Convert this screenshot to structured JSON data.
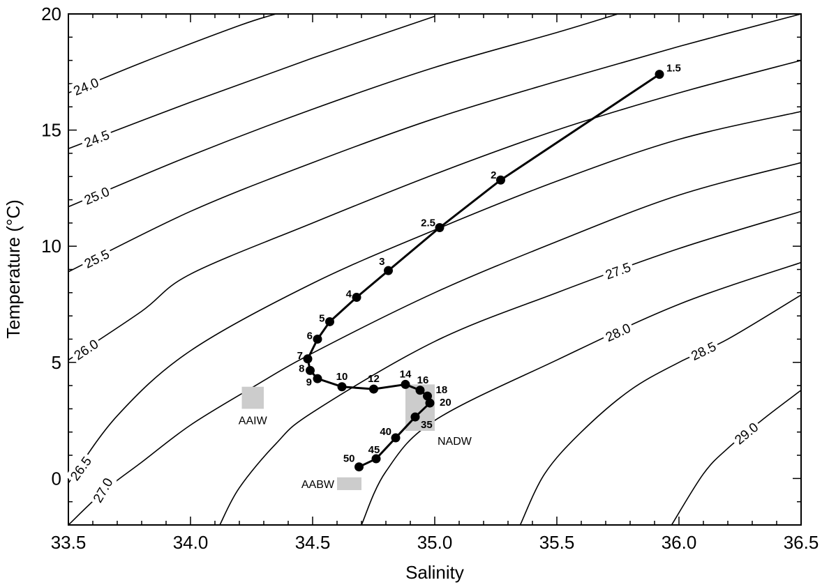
{
  "chart_data": {
    "type": "line",
    "title": "",
    "xlabel": "Salinity",
    "ylabel": "Temperature (°C)",
    "xlim": [
      33.5,
      36.5
    ],
    "ylim": [
      -2,
      20
    ],
    "xticks": [
      "33.5",
      "34.0",
      "34.5",
      "35.0",
      "35.5",
      "36.0",
      "36.5"
    ],
    "yticks": [
      "0",
      "5",
      "10",
      "15",
      "20"
    ],
    "grid": false,
    "series": [
      {
        "points": [
          {
            "x": 35.92,
            "y": 17.4,
            "label": "1.5"
          },
          {
            "x": 35.27,
            "y": 12.85,
            "label": "2"
          },
          {
            "x": 35.02,
            "y": 10.8,
            "label": "2.5"
          },
          {
            "x": 34.81,
            "y": 8.95,
            "label": "3"
          },
          {
            "x": 34.68,
            "y": 7.8,
            "label": "4"
          },
          {
            "x": 34.57,
            "y": 6.75,
            "label": "5"
          },
          {
            "x": 34.52,
            "y": 6.0,
            "label": "6"
          },
          {
            "x": 34.48,
            "y": 5.15,
            "label": "7"
          },
          {
            "x": 34.49,
            "y": 4.65,
            "label": "8"
          },
          {
            "x": 34.52,
            "y": 4.3,
            "label": "9"
          },
          {
            "x": 34.62,
            "y": 3.95,
            "label": "10"
          },
          {
            "x": 34.75,
            "y": 3.85,
            "label": "12"
          },
          {
            "x": 34.88,
            "y": 4.05,
            "label": "14"
          },
          {
            "x": 34.94,
            "y": 3.8,
            "label": "16"
          },
          {
            "x": 34.97,
            "y": 3.55,
            "label": "18"
          },
          {
            "x": 34.98,
            "y": 3.25,
            "label": "20"
          },
          {
            "x": 34.92,
            "y": 2.65,
            "label": "35"
          },
          {
            "x": 34.84,
            "y": 1.75,
            "label": "40"
          },
          {
            "x": 34.76,
            "y": 0.85,
            "label": "45"
          },
          {
            "x": 34.69,
            "y": 0.5,
            "label": "50"
          }
        ]
      }
    ],
    "isopycnals": [
      {
        "label": "24.0",
        "points": [
          [
            33.5,
            16.6
          ],
          [
            33.8,
            17.9
          ],
          [
            34.2,
            19.5
          ],
          [
            34.35,
            20
          ]
        ]
      },
      {
        "label": "24.5",
        "points": [
          [
            33.5,
            14.2
          ],
          [
            34.0,
            16.2
          ],
          [
            34.5,
            18.1
          ],
          [
            35.0,
            19.9
          ]
        ]
      },
      {
        "label": "25.0",
        "points": [
          [
            33.5,
            11.7
          ],
          [
            34.0,
            13.9
          ],
          [
            34.5,
            15.9
          ],
          [
            35.0,
            17.7
          ],
          [
            35.5,
            19.2
          ],
          [
            35.75,
            20
          ]
        ]
      },
      {
        "label": "25.5",
        "points": [
          [
            33.5,
            8.9
          ],
          [
            34.0,
            11.5
          ],
          [
            34.5,
            13.6
          ],
          [
            35.0,
            15.5
          ],
          [
            35.5,
            17.1
          ],
          [
            36.0,
            18.6
          ],
          [
            36.5,
            20
          ]
        ]
      },
      {
        "label": "26.0",
        "points": [
          [
            33.5,
            5.1
          ],
          [
            33.8,
            7.2
          ],
          [
            34.0,
            8.8
          ],
          [
            34.5,
            11.0
          ],
          [
            35.0,
            13.1
          ],
          [
            35.5,
            15.0
          ],
          [
            36.0,
            16.6
          ],
          [
            36.5,
            18.0
          ]
        ]
      },
      {
        "label": "26.5",
        "points": [
          [
            33.5,
            -0.2
          ],
          [
            33.7,
            2.7
          ],
          [
            34.0,
            5.5
          ],
          [
            34.5,
            8.4
          ],
          [
            35.0,
            10.7
          ],
          [
            35.5,
            12.8
          ],
          [
            36.0,
            14.6
          ],
          [
            36.5,
            15.8
          ]
        ]
      },
      {
        "label": "27.0",
        "points": [
          [
            33.5,
            -2.0
          ],
          [
            33.65,
            -0.5
          ],
          [
            33.8,
            0.7
          ],
          [
            34.0,
            2.3
          ],
          [
            34.25,
            3.9
          ],
          [
            34.5,
            5.4
          ],
          [
            35.0,
            8.0
          ],
          [
            35.5,
            10.2
          ],
          [
            36.0,
            12.2
          ],
          [
            36.5,
            13.6
          ]
        ]
      },
      {
        "label": "27.5",
        "points": [
          [
            34.12,
            -2.0
          ],
          [
            34.2,
            -0.4
          ],
          [
            34.35,
            1.5
          ],
          [
            34.5,
            2.85
          ],
          [
            35.0,
            5.9
          ],
          [
            35.5,
            8.0
          ],
          [
            36.0,
            9.9
          ],
          [
            36.5,
            11.5
          ]
        ]
      },
      {
        "label": "28.0",
        "points": [
          [
            34.7,
            -2.0
          ],
          [
            34.8,
            0.3
          ],
          [
            35.0,
            2.5
          ],
          [
            35.5,
            5.1
          ],
          [
            36.0,
            7.5
          ],
          [
            36.5,
            9.3
          ]
        ]
      },
      {
        "label": "28.5",
        "points": [
          [
            35.35,
            -2.0
          ],
          [
            35.45,
            0.2
          ],
          [
            35.6,
            2.0
          ],
          [
            35.8,
            3.8
          ],
          [
            36.0,
            5.0
          ],
          [
            36.2,
            6.0
          ],
          [
            36.5,
            7.9
          ]
        ]
      },
      {
        "label": "29.0",
        "points": [
          [
            35.97,
            -2.0
          ],
          [
            36.1,
            0.2
          ],
          [
            36.2,
            1.3
          ],
          [
            36.35,
            2.6
          ],
          [
            36.5,
            3.8
          ]
        ]
      }
    ],
    "water_masses": [
      {
        "label": "AAIW",
        "salinity": [
          34.21,
          34.3
        ],
        "temperature": [
          3.0,
          3.95
        ]
      },
      {
        "label": "NADW",
        "salinity": [
          34.88,
          35.0
        ],
        "temperature": [
          2.05,
          4.05
        ]
      },
      {
        "label": "AABW",
        "salinity": [
          34.6,
          34.7
        ],
        "temperature": [
          -0.5,
          0.05
        ]
      }
    ],
    "colors": {
      "line": "#000000",
      "shade": "#cccccc"
    }
  }
}
